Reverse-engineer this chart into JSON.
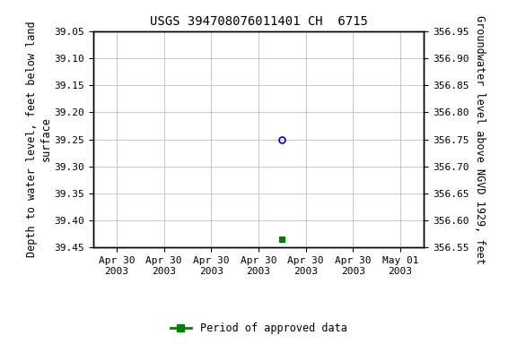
{
  "title": "USGS 394708076011401 CH  6715",
  "point_x_circle": 4.0,
  "point_y_circle": 39.25,
  "point_x_square": 4.0,
  "point_y_square": 39.435,
  "ylim_left_bottom": 39.45,
  "ylim_left_top": 39.05,
  "ylim_right_bottom": 356.55,
  "ylim_right_top": 356.95,
  "yticks_left": [
    39.05,
    39.1,
    39.15,
    39.2,
    39.25,
    39.3,
    39.35,
    39.4,
    39.45
  ],
  "yticks_right": [
    356.55,
    356.6,
    356.65,
    356.7,
    356.75,
    356.8,
    356.85,
    356.9,
    356.95
  ],
  "xtick_labels": [
    "Apr 30\n2003",
    "Apr 30\n2003",
    "Apr 30\n2003",
    "Apr 30\n2003",
    "Apr 30\n2003",
    "Apr 30\n2003",
    "May 01\n2003"
  ],
  "xlim": [
    0,
    7
  ],
  "xtick_positions": [
    0.5,
    1.5,
    2.5,
    3.5,
    4.5,
    5.5,
    6.5
  ],
  "ylabel_left": "Depth to water level, feet below land\nsurface",
  "ylabel_right": "Groundwater level above NGVD 1929, feet",
  "circle_color": "#0000cc",
  "square_color": "#008000",
  "legend_label": "Period of approved data",
  "bg_color": "#ffffff",
  "grid_color": "#c8c8c8",
  "title_fontsize": 10,
  "axis_label_fontsize": 8.5,
  "tick_fontsize": 8,
  "legend_fontsize": 8.5
}
